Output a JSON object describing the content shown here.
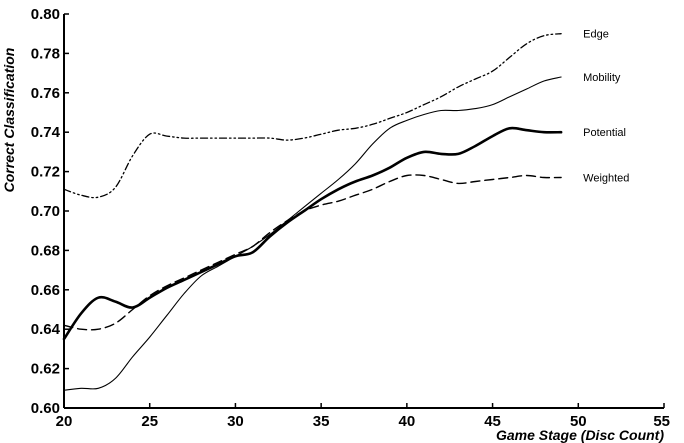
{
  "chart_data": {
    "type": "line",
    "xlabel": "Game Stage (Disc Count)",
    "ylabel": "Correct Classification",
    "xlim": [
      20,
      55
    ],
    "ylim": [
      0.6,
      0.8
    ],
    "xticks": [
      "20",
      "25",
      "30",
      "35",
      "40",
      "45",
      "50",
      "55"
    ],
    "yticks": [
      "0.60",
      "0.62",
      "0.64",
      "0.66",
      "0.68",
      "0.70",
      "0.72",
      "0.74",
      "0.76",
      "0.78",
      "0.80"
    ],
    "grid": false,
    "legend": "inline labels at right end of each series",
    "series": [
      {
        "name": "Edge",
        "style": "dash-dot-dot",
        "x": [
          20,
          21,
          22,
          23,
          24,
          25,
          26,
          27,
          28,
          29,
          30,
          31,
          32,
          33,
          34,
          35,
          36,
          37,
          38,
          39,
          40,
          41,
          42,
          43,
          44,
          45,
          46,
          47,
          48,
          49
        ],
        "y": [
          0.711,
          0.708,
          0.707,
          0.712,
          0.728,
          0.739,
          0.738,
          0.737,
          0.737,
          0.737,
          0.737,
          0.737,
          0.737,
          0.736,
          0.737,
          0.739,
          0.741,
          0.742,
          0.744,
          0.747,
          0.75,
          0.754,
          0.758,
          0.763,
          0.767,
          0.771,
          0.778,
          0.785,
          0.789,
          0.79
        ]
      },
      {
        "name": "Mobility",
        "style": "thin-solid",
        "x": [
          20,
          21,
          22,
          23,
          24,
          25,
          26,
          27,
          28,
          29,
          30,
          31,
          32,
          33,
          34,
          35,
          36,
          37,
          38,
          39,
          40,
          41,
          42,
          43,
          44,
          45,
          46,
          47,
          48,
          49
        ],
        "y": [
          0.609,
          0.61,
          0.61,
          0.615,
          0.626,
          0.636,
          0.647,
          0.658,
          0.667,
          0.672,
          0.677,
          0.682,
          0.688,
          0.695,
          0.702,
          0.709,
          0.716,
          0.724,
          0.734,
          0.742,
          0.746,
          0.749,
          0.751,
          0.751,
          0.752,
          0.754,
          0.758,
          0.762,
          0.766,
          0.768
        ]
      },
      {
        "name": "Potential",
        "style": "thick-solid",
        "x": [
          20,
          21,
          22,
          23,
          24,
          25,
          26,
          27,
          28,
          29,
          30,
          31,
          32,
          33,
          34,
          35,
          36,
          37,
          38,
          39,
          40,
          41,
          42,
          43,
          44,
          45,
          46,
          47,
          48,
          49
        ],
        "y": [
          0.635,
          0.648,
          0.656,
          0.654,
          0.651,
          0.656,
          0.661,
          0.665,
          0.669,
          0.673,
          0.677,
          0.679,
          0.687,
          0.694,
          0.7,
          0.706,
          0.711,
          0.715,
          0.718,
          0.722,
          0.727,
          0.73,
          0.729,
          0.729,
          0.733,
          0.738,
          0.742,
          0.741,
          0.74,
          0.74
        ]
      },
      {
        "name": "Weighted",
        "style": "dashed",
        "x": [
          20,
          21,
          22,
          23,
          24,
          25,
          26,
          27,
          28,
          29,
          30,
          31,
          32,
          33,
          34,
          35,
          36,
          37,
          38,
          39,
          40,
          41,
          42,
          43,
          44,
          45,
          46,
          47,
          48,
          49
        ],
        "y": [
          0.642,
          0.64,
          0.64,
          0.643,
          0.65,
          0.657,
          0.662,
          0.666,
          0.67,
          0.674,
          0.678,
          0.682,
          0.689,
          0.695,
          0.7,
          0.703,
          0.705,
          0.708,
          0.711,
          0.715,
          0.718,
          0.718,
          0.716,
          0.714,
          0.715,
          0.716,
          0.717,
          0.718,
          0.717,
          0.717
        ]
      }
    ]
  }
}
